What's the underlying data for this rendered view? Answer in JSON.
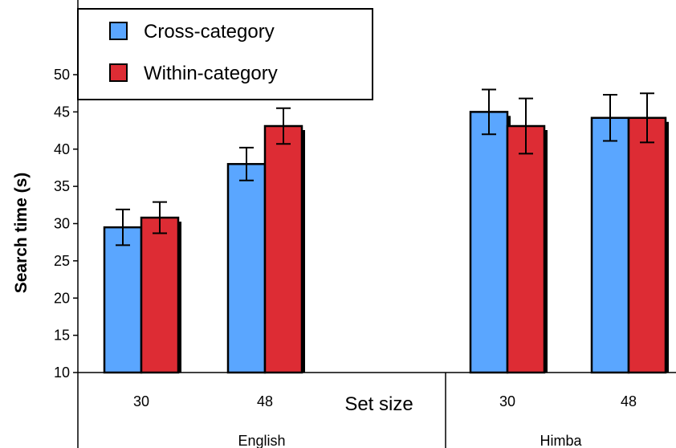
{
  "chart_data": {
    "type": "bar",
    "ylabel": "Search time (s)",
    "xlabel": "Set size",
    "ylim": [
      10,
      50
    ],
    "yticks": [
      10,
      15,
      20,
      25,
      30,
      35,
      40,
      45,
      50
    ],
    "groups": [
      "English",
      "Himba"
    ],
    "categories": [
      "30",
      "48",
      "30",
      "48"
    ],
    "category_group": [
      "English",
      "English",
      "Himba",
      "Himba"
    ],
    "series": [
      {
        "name": "Cross-category",
        "color": "#5aa6ff",
        "values": [
          29.5,
          38.0,
          45.0,
          44.2
        ],
        "error": [
          2.4,
          2.2,
          3.0,
          3.1
        ]
      },
      {
        "name": "Within-category",
        "color": "#dd2c34",
        "values": [
          30.8,
          43.1,
          43.1,
          44.2
        ],
        "error": [
          2.1,
          2.4,
          3.7,
          3.3
        ]
      }
    ],
    "legend_position": "top-left",
    "grid": false
  }
}
